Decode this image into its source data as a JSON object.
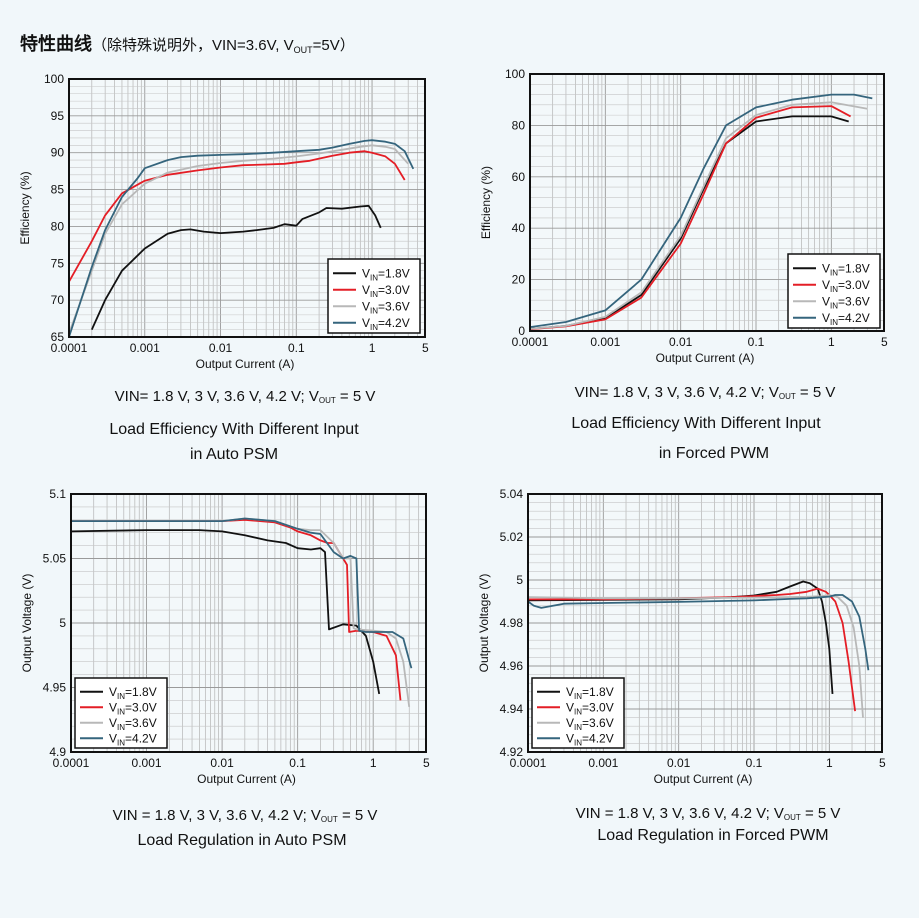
{
  "page": {
    "title": "特性曲线",
    "subtitle_open": "（除特殊说明外，VIN=3.6V, V",
    "subtitle_sub": "OUT",
    "subtitle_close": "=5V）"
  },
  "colors": {
    "background": "#f1f7fa",
    "series": [
      "#111111",
      "#e41e26",
      "#b8b8b8",
      "#35657d"
    ]
  },
  "chart_data": [
    {
      "id": "eff_psm",
      "type": "line",
      "xscale": "log",
      "xlim": [
        0.0001,
        5
      ],
      "ylim": [
        65,
        100
      ],
      "x_ticks": [
        0.0001,
        0.001,
        0.01,
        0.1,
        1,
        5
      ],
      "x_tick_labels": [
        "0.0001",
        "0.001",
        "0.01",
        "0.1",
        "1",
        "5"
      ],
      "y_ticks": [
        65,
        70,
        75,
        80,
        85,
        90,
        95,
        100
      ],
      "y_tick_labels": [
        "65",
        "70",
        "75",
        "80",
        "85",
        "90",
        "95",
        "100"
      ],
      "xlabel": "Output Current (A)",
      "ylabel": "Efficiency (%)",
      "legend_position": "bottom-right",
      "caption_formula_a": "VIN= 1.8 V, 3 V, 3.6 V, 4.2 V; V",
      "caption_formula_sub": "OUT",
      "caption_formula_b": " = 5 V",
      "caption_line1": "Load Efficiency With Different Input",
      "caption_line2": "in Auto  PSM",
      "series": [
        {
          "name": "VIN=1.8V",
          "name_main": "V",
          "name_sub": "IN",
          "name_rest": "=1.8V",
          "x": [
            0.0002,
            0.0003,
            0.0005,
            0.001,
            0.002,
            0.003,
            0.004,
            0.006,
            0.01,
            0.02,
            0.03,
            0.05,
            0.07,
            0.1,
            0.12,
            0.2,
            0.25,
            0.4,
            0.7,
            0.9,
            1.1,
            1.3
          ],
          "y": [
            66,
            70,
            74,
            77,
            79,
            79.5,
            79.6,
            79.3,
            79.1,
            79.3,
            79.5,
            79.8,
            80.3,
            80.1,
            81.0,
            81.9,
            82.5,
            82.4,
            82.7,
            82.8,
            81.5,
            79.8
          ]
        },
        {
          "name": "VIN=3.0V",
          "name_main": "V",
          "name_sub": "IN",
          "name_rest": "=3.0V",
          "x": [
            0.0001,
            0.0002,
            0.0003,
            0.0005,
            0.001,
            0.002,
            0.005,
            0.01,
            0.02,
            0.04,
            0.07,
            0.1,
            0.15,
            0.2,
            0.3,
            0.5,
            0.8,
            1.0,
            1.5,
            2.0,
            2.7
          ],
          "y": [
            72.5,
            78,
            81.5,
            84.5,
            86.2,
            87.0,
            87.6,
            88.0,
            88.3,
            88.4,
            88.5,
            88.7,
            88.9,
            89.2,
            89.6,
            90.0,
            90.2,
            90.0,
            89.5,
            88.5,
            86.3
          ]
        },
        {
          "name": "VIN=3.6V",
          "name_main": "V",
          "name_sub": "IN",
          "name_rest": "=3.6V",
          "x": [
            0.0001,
            0.0002,
            0.0003,
            0.0005,
            0.001,
            0.002,
            0.005,
            0.01,
            0.02,
            0.05,
            0.1,
            0.2,
            0.4,
            0.7,
            1.0,
            1.5,
            2.0,
            3.0
          ],
          "y": [
            65.5,
            74,
            79,
            83,
            85.8,
            87.3,
            88.2,
            88.6,
            88.9,
            89.2,
            89.5,
            89.9,
            90.4,
            90.8,
            91.0,
            90.8,
            90.5,
            88.5
          ]
        },
        {
          "name": "VIN=4.2V",
          "name_main": "V",
          "name_sub": "IN",
          "name_rest": "=4.2V",
          "x": [
            0.0001,
            0.0002,
            0.0003,
            0.0005,
            0.0008,
            0.001,
            0.002,
            0.003,
            0.005,
            0.01,
            0.02,
            0.05,
            0.1,
            0.2,
            0.3,
            0.5,
            0.8,
            1.0,
            1.5,
            2.0,
            2.7,
            3.5
          ],
          "y": [
            65,
            74.5,
            79.5,
            84,
            86.5,
            87.9,
            89.0,
            89.4,
            89.6,
            89.7,
            89.8,
            90.0,
            90.2,
            90.4,
            90.7,
            91.2,
            91.6,
            91.7,
            91.5,
            91.2,
            90.2,
            87.8
          ]
        }
      ]
    },
    {
      "id": "eff_pwm",
      "type": "line",
      "xscale": "log",
      "xlim": [
        0.0001,
        5
      ],
      "ylim": [
        0,
        100
      ],
      "x_ticks": [
        0.0001,
        0.001,
        0.01,
        0.1,
        1,
        5
      ],
      "x_tick_labels": [
        "0.0001",
        "0.001",
        "0.01",
        "0.1",
        "1",
        "5"
      ],
      "y_ticks": [
        0,
        20,
        40,
        60,
        80,
        100
      ],
      "y_tick_labels": [
        "0",
        "20",
        "40",
        "60",
        "80",
        "100"
      ],
      "xlabel": "Output Current (A)",
      "ylabel": "Efficiency (%)",
      "legend_position": "bottom-right",
      "caption_formula_a": "VIN= 1.8 V, 3 V, 3.6 V, 4.2 V; V",
      "caption_formula_sub": "OUT",
      "caption_formula_b": " = 5 V",
      "caption_line1": "Load Efficiency With Different Input",
      "caption_line2": "in  Forced PWM",
      "series": [
        {
          "name": "VIN=1.8V",
          "name_main": "V",
          "name_sub": "IN",
          "name_rest": "=1.8V",
          "x": [
            0.0001,
            0.0003,
            0.001,
            0.003,
            0.01,
            0.02,
            0.04,
            0.1,
            0.3,
            1.0,
            1.7
          ],
          "y": [
            0.8,
            2,
            5,
            14,
            36,
            55,
            73,
            81.5,
            83.5,
            83.5,
            81.5
          ]
        },
        {
          "name": "VIN=3.0V",
          "name_main": "V",
          "name_sub": "IN",
          "name_rest": "=3.0V",
          "x": [
            0.0001,
            0.0003,
            0.001,
            0.003,
            0.01,
            0.02,
            0.04,
            0.1,
            0.3,
            1.0,
            1.8
          ],
          "y": [
            0.7,
            1.8,
            4.5,
            13,
            34,
            53,
            73,
            83,
            87,
            87.5,
            83.5
          ]
        },
        {
          "name": "VIN=3.6V",
          "name_main": "V",
          "name_sub": "IN",
          "name_rest": "=3.6V",
          "x": [
            0.0001,
            0.0003,
            0.001,
            0.003,
            0.01,
            0.02,
            0.04,
            0.1,
            0.3,
            1.0,
            3.0
          ],
          "y": [
            0.8,
            2,
            5.5,
            15,
            37,
            56,
            75,
            84,
            88,
            89,
            86.5
          ]
        },
        {
          "name": "VIN=4.2V",
          "name_main": "V",
          "name_sub": "IN",
          "name_rest": "=4.2V",
          "x": [
            0.0001,
            0.0003,
            0.001,
            0.003,
            0.01,
            0.02,
            0.04,
            0.1,
            0.3,
            1.0,
            2.0,
            3.5
          ],
          "y": [
            1.5,
            3.5,
            8,
            20,
            44,
            63,
            80,
            87,
            90,
            92,
            92,
            90.5
          ]
        }
      ]
    },
    {
      "id": "reg_psm",
      "type": "line",
      "xscale": "log",
      "xlim": [
        0.0001,
        5
      ],
      "ylim": [
        4.9,
        5.1
      ],
      "x_ticks": [
        0.0001,
        0.001,
        0.01,
        0.1,
        1,
        5
      ],
      "x_tick_labels": [
        "0.0001",
        "0.001",
        "0.01",
        "0.1",
        "1",
        "5"
      ],
      "y_ticks": [
        4.9,
        4.95,
        5.0,
        5.05,
        5.1
      ],
      "y_tick_labels": [
        "4.9",
        "4.95",
        "5",
        "5.05",
        "5.1"
      ],
      "xlabel": "Output Current (A)",
      "ylabel": "Output Voltage (V)",
      "legend_position": "bottom-left",
      "caption_formula_a": "VIN = 1.8 V, 3 V, 3.6 V, 4.2 V; V",
      "caption_formula_sub": "OUT",
      "caption_formula_b": "    = 5 V",
      "caption_line1": "Load Regulation in Auto PSM",
      "caption_line2": "",
      "series": [
        {
          "name": "VIN=1.8V",
          "name_main": "V",
          "name_sub": "IN",
          "name_rest": "=1.8V",
          "x": [
            0.0001,
            0.001,
            0.005,
            0.01,
            0.02,
            0.04,
            0.07,
            0.1,
            0.15,
            0.2,
            0.23,
            0.26,
            0.4,
            0.6,
            0.8,
            1.0,
            1.2
          ],
          "y": [
            5.071,
            5.072,
            5.072,
            5.071,
            5.068,
            5.064,
            5.062,
            5.058,
            5.057,
            5.058,
            5.055,
            4.995,
            4.999,
            4.998,
            4.99,
            4.97,
            4.945
          ]
        },
        {
          "name": "VIN=3.0V",
          "name_main": "V",
          "name_sub": "IN",
          "name_rest": "=3.0V",
          "x": [
            0.0001,
            0.001,
            0.01,
            0.02,
            0.05,
            0.08,
            0.1,
            0.15,
            0.2,
            0.25,
            0.3,
            0.4,
            0.45,
            0.48,
            0.6,
            1.0,
            1.5,
            2.0,
            2.3
          ],
          "y": [
            5.079,
            5.079,
            5.079,
            5.08,
            5.078,
            5.074,
            5.071,
            5.068,
            5.064,
            5.062,
            5.062,
            5.05,
            5.045,
            4.993,
            4.994,
            4.993,
            4.99,
            4.975,
            4.94
          ]
        },
        {
          "name": "VIN=3.6V",
          "name_main": "V",
          "name_sub": "IN",
          "name_rest": "=3.6V",
          "x": [
            0.0001,
            0.001,
            0.01,
            0.02,
            0.05,
            0.1,
            0.15,
            0.2,
            0.3,
            0.4,
            0.5,
            0.55,
            0.6,
            1.0,
            1.5,
            2.0,
            2.5,
            3.0
          ],
          "y": [
            5.079,
            5.079,
            5.079,
            5.081,
            5.079,
            5.073,
            5.072,
            5.072,
            5.062,
            5.05,
            5.05,
            4.996,
            4.995,
            4.994,
            4.993,
            4.988,
            4.97,
            4.935
          ]
        },
        {
          "name": "VIN=4.2V",
          "name_main": "V",
          "name_sub": "IN",
          "name_rest": "=4.2V",
          "x": [
            0.0001,
            0.001,
            0.01,
            0.02,
            0.05,
            0.1,
            0.15,
            0.2,
            0.3,
            0.4,
            0.5,
            0.6,
            0.65,
            0.8,
            1.2,
            1.8,
            2.5,
            3.2
          ],
          "y": [
            5.079,
            5.079,
            5.079,
            5.081,
            5.079,
            5.073,
            5.07,
            5.069,
            5.055,
            5.05,
            5.052,
            5.05,
            4.994,
            4.993,
            4.993,
            4.993,
            4.988,
            4.965
          ]
        }
      ]
    },
    {
      "id": "reg_pwm",
      "type": "line",
      "xscale": "log",
      "xlim": [
        0.0001,
        5
      ],
      "ylim": [
        4.92,
        5.04
      ],
      "x_ticks": [
        0.0001,
        0.001,
        0.01,
        0.1,
        1,
        5
      ],
      "x_tick_labels": [
        "0.0001",
        "0.001",
        "0.01",
        "0.1",
        "1",
        "5"
      ],
      "y_ticks": [
        4.92,
        4.94,
        4.96,
        4.98,
        5.0,
        5.02,
        5.04
      ],
      "y_tick_labels": [
        "4.92",
        "4.94",
        "4.96",
        "4.98",
        "5",
        "5.02",
        "5.04"
      ],
      "xlabel": "Output Current (A)",
      "ylabel": "Output Voltage (V)",
      "legend_position": "bottom-left",
      "caption_formula_a": "VIN = 1.8 V, 3 V, 3.6 V, 4.2 V; V",
      "caption_formula_sub": "OUT",
      "caption_formula_b": "    = 5 V",
      "caption_line1": "Load Regulation in Forced PWM",
      "caption_line2": "",
      "series": [
        {
          "name": "VIN=1.8V",
          "name_main": "V",
          "name_sub": "IN",
          "name_rest": "=1.8V",
          "x": [
            0.0001,
            0.001,
            0.01,
            0.05,
            0.1,
            0.2,
            0.3,
            0.45,
            0.55,
            0.7,
            0.8,
            0.9,
            1.0,
            1.1
          ],
          "y": [
            4.9905,
            4.9908,
            4.991,
            4.992,
            4.9928,
            4.9945,
            4.997,
            4.9993,
            4.9985,
            4.996,
            4.99,
            4.98,
            4.968,
            4.947
          ]
        },
        {
          "name": "VIN=3.0V",
          "name_main": "V",
          "name_sub": "IN",
          "name_rest": "=3.0V",
          "x": [
            0.0001,
            0.001,
            0.01,
            0.05,
            0.1,
            0.2,
            0.3,
            0.5,
            0.7,
            0.9,
            1.0,
            1.2,
            1.5,
            1.8,
            2.2
          ],
          "y": [
            4.991,
            4.991,
            4.9915,
            4.992,
            4.9925,
            4.993,
            4.9935,
            4.9945,
            4.996,
            4.9945,
            4.993,
            4.99,
            4.98,
            4.962,
            4.939
          ]
        },
        {
          "name": "VIN=3.6V",
          "name_main": "V",
          "name_sub": "IN",
          "name_rest": "=3.6V",
          "x": [
            0.0001,
            0.00011,
            0.0003,
            0.001,
            0.01,
            0.1,
            0.5,
            0.8,
            1.0,
            1.3,
            1.7,
            2.1,
            2.5,
            2.8
          ],
          "y": [
            4.992,
            4.992,
            4.9918,
            4.9915,
            4.9915,
            4.9918,
            4.9922,
            4.9925,
            4.993,
            4.992,
            4.988,
            4.978,
            4.96,
            4.936
          ]
        },
        {
          "name": "VIN=4.2V",
          "name_main": "V",
          "name_sub": "IN",
          "name_rest": "=4.2V",
          "x": [
            0.0001,
            0.00012,
            0.00015,
            0.0003,
            0.001,
            0.01,
            0.1,
            0.3,
            0.5,
            0.8,
            1.0,
            1.2,
            1.5,
            2.0,
            2.5,
            3.0,
            3.3
          ],
          "y": [
            4.99,
            4.988,
            4.987,
            4.989,
            4.9893,
            4.9898,
            4.9905,
            4.9912,
            4.9915,
            4.992,
            4.9923,
            4.993,
            4.993,
            4.99,
            4.983,
            4.968,
            4.958
          ]
        }
      ]
    }
  ]
}
